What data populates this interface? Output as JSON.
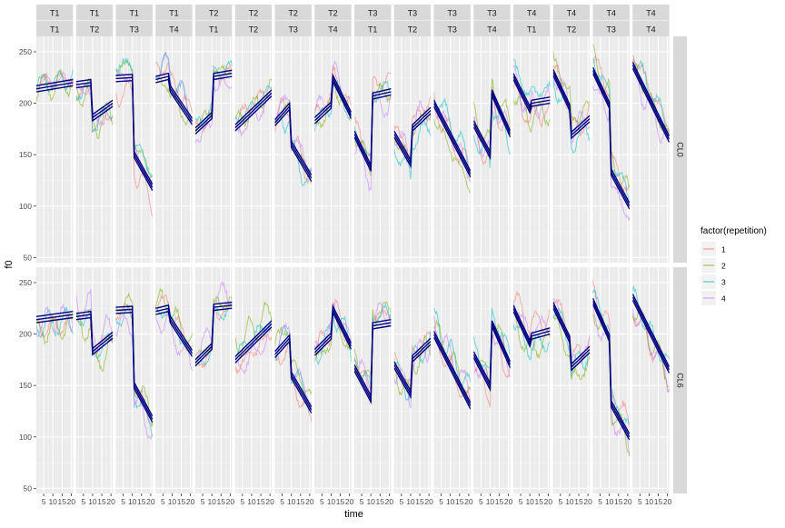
{
  "chart_data": {
    "type": "line",
    "xlabel": "time",
    "ylabel": "f0",
    "x_ticks": [
      5,
      10,
      15,
      20
    ],
    "x_range": [
      1,
      21
    ],
    "y_ticks": [
      50,
      100,
      150,
      200,
      250
    ],
    "y_range": [
      45,
      265
    ],
    "grid": true,
    "legend": {
      "title": "factor(repetition)",
      "position": "right",
      "entries": [
        {
          "label": "1",
          "color": "#F8766D"
        },
        {
          "label": "2",
          "color": "#7CAE00"
        },
        {
          "label": "3",
          "color": "#00BFC4"
        },
        {
          "label": "4",
          "color": "#C77CFF"
        }
      ]
    },
    "fit_color": "#000080",
    "row_strips": [
      "CL0",
      "CL6"
    ],
    "panels": [
      {
        "strip_top": "T1",
        "strip_bottom": "T1"
      },
      {
        "strip_top": "T1",
        "strip_bottom": "T2"
      },
      {
        "strip_top": "T1",
        "strip_bottom": "T3"
      },
      {
        "strip_top": "T1",
        "strip_bottom": "T4"
      },
      {
        "strip_top": "T2",
        "strip_bottom": "T1"
      },
      {
        "strip_top": "T2",
        "strip_bottom": "T2"
      },
      {
        "strip_top": "T2",
        "strip_bottom": "T3"
      },
      {
        "strip_top": "T2",
        "strip_bottom": "T4"
      },
      {
        "strip_top": "T3",
        "strip_bottom": "T1"
      },
      {
        "strip_top": "T3",
        "strip_bottom": "T2"
      },
      {
        "strip_top": "T3",
        "strip_bottom": "T3"
      },
      {
        "strip_top": "T3",
        "strip_bottom": "T4"
      },
      {
        "strip_top": "T4",
        "strip_bottom": "T1"
      },
      {
        "strip_top": "T4",
        "strip_bottom": "T2"
      },
      {
        "strip_top": "T4",
        "strip_bottom": "T3"
      },
      {
        "strip_top": "T4",
        "strip_bottom": "T4"
      }
    ],
    "fit_segments": {
      "CL0": [
        [
          [
            [
              1,
              214
            ],
            [
              21,
              220
            ]
          ]
        ],
        [
          [
            [
              1,
              218
            ],
            [
              9,
              220
            ],
            [
              10,
              186
            ],
            [
              21,
              200
            ]
          ]
        ],
        [
          [
            [
              1,
              224
            ],
            [
              10,
              225
            ],
            [
              11,
              150
            ],
            [
              21,
              118
            ]
          ]
        ],
        [
          [
            [
              1,
              223
            ],
            [
              8,
              226
            ],
            [
              9,
              214
            ],
            [
              21,
              182
            ]
          ]
        ],
        [
          [
            [
              1,
              173
            ],
            [
              10,
              188
            ],
            [
              11,
              226
            ],
            [
              21,
              229
            ]
          ]
        ],
        [
          [
            [
              1,
              176
            ],
            [
              21,
              210
            ]
          ]
        ],
        [
          [
            [
              1,
              181
            ],
            [
              9,
              197
            ],
            [
              10,
              160
            ],
            [
              21,
              127
            ]
          ]
        ],
        [
          [
            [
              1,
              183
            ],
            [
              10,
              198
            ],
            [
              11,
              224
            ],
            [
              21,
              188
            ]
          ]
        ],
        [
          [
            [
              1,
              170
            ],
            [
              10,
              137
            ],
            [
              11,
              207
            ],
            [
              21,
              211
            ]
          ]
        ],
        [
          [
            [
              1,
              170
            ],
            [
              10,
              142
            ],
            [
              11,
              176
            ],
            [
              21,
              193
            ]
          ]
        ],
        [
          [
            [
              1,
              200
            ],
            [
              21,
              131
            ]
          ]
        ],
        [
          [
            [
              1,
              180
            ],
            [
              10,
              150
            ],
            [
              11,
              210
            ],
            [
              21,
              170
            ]
          ]
        ],
        [
          [
            [
              1,
              226
            ],
            [
              10,
              194
            ],
            [
              11,
              200
            ],
            [
              21,
              203
            ]
          ]
        ],
        [
          [
            [
              1,
              230
            ],
            [
              10,
              196
            ],
            [
              11,
              169
            ],
            [
              21,
              185
            ]
          ]
        ],
        [
          [
            [
              1,
              232
            ],
            [
              10,
              198
            ],
            [
              11,
              133
            ],
            [
              21,
              100
            ]
          ]
        ],
        [
          [
            [
              1,
              237
            ],
            [
              21,
              165
            ]
          ]
        ]
      ],
      "CL6": [
        [
          [
            [
              1,
              214
            ],
            [
              21,
              219
            ]
          ]
        ],
        [
          [
            [
              1,
              217
            ],
            [
              9,
              219
            ],
            [
              10,
              183
            ],
            [
              21,
              199
            ]
          ]
        ],
        [
          [
            [
              1,
              223
            ],
            [
              10,
              224
            ],
            [
              11,
              150
            ],
            [
              21,
              117
            ]
          ]
        ],
        [
          [
            [
              1,
              222
            ],
            [
              8,
              225
            ],
            [
              9,
              214
            ],
            [
              21,
              181
            ]
          ]
        ],
        [
          [
            [
              1,
              172
            ],
            [
              10,
              188
            ],
            [
              11,
              226
            ],
            [
              21,
              228
            ]
          ]
        ],
        [
          [
            [
              1,
              175
            ],
            [
              21,
              210
            ]
          ]
        ],
        [
          [
            [
              1,
              180
            ],
            [
              9,
              196
            ],
            [
              10,
              160
            ],
            [
              21,
              126
            ]
          ]
        ],
        [
          [
            [
              1,
              182
            ],
            [
              10,
              198
            ],
            [
              11,
              224
            ],
            [
              21,
              188
            ]
          ]
        ],
        [
          [
            [
              1,
              167
            ],
            [
              10,
              137
            ],
            [
              11,
              208
            ],
            [
              21,
              211
            ]
          ]
        ],
        [
          [
            [
              1,
              170
            ],
            [
              10,
              142
            ],
            [
              11,
              176
            ],
            [
              21,
              193
            ]
          ]
        ],
        [
          [
            [
              1,
              200
            ],
            [
              21,
              130
            ]
          ]
        ],
        [
          [
            [
              1,
              180
            ],
            [
              10,
              149
            ],
            [
              11,
              210
            ],
            [
              21,
              170
            ]
          ]
        ],
        [
          [
            [
              1,
              225
            ],
            [
              10,
              191
            ],
            [
              11,
              198
            ],
            [
              21,
              203
            ]
          ]
        ],
        [
          [
            [
              1,
              228
            ],
            [
              10,
              195
            ],
            [
              11,
              168
            ],
            [
              21,
              185
            ]
          ]
        ],
        [
          [
            [
              1,
              232
            ],
            [
              10,
              196
            ],
            [
              11,
              132
            ],
            [
              21,
              100
            ]
          ]
        ],
        [
          [
            [
              1,
              236
            ],
            [
              21,
              165
            ]
          ]
        ]
      ]
    }
  }
}
